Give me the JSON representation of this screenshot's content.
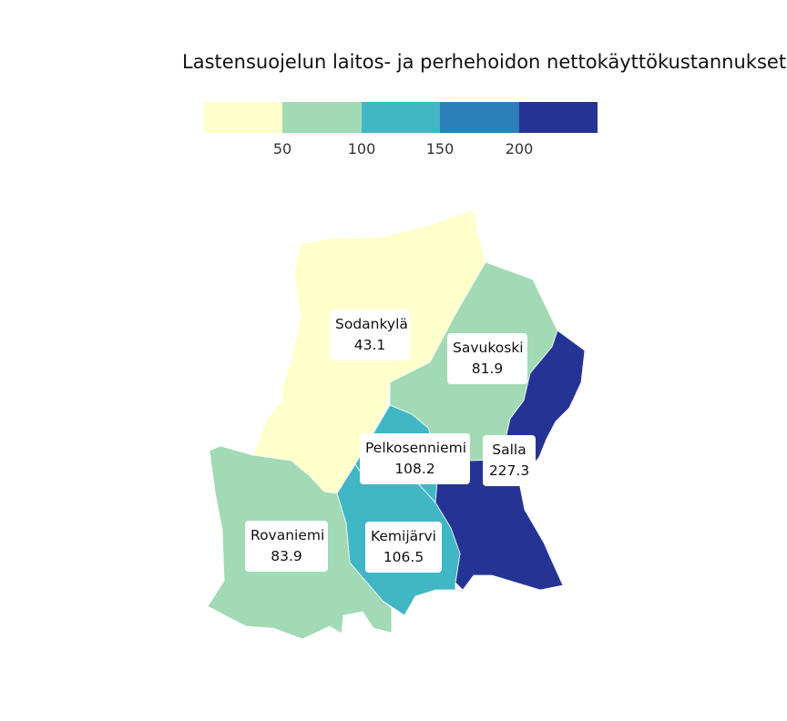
{
  "title": "Lastensuojelun laitos- ja perhehoidon nettokäyttökustannukset",
  "legend": {
    "colors": [
      "#ffffcc",
      "#a1dab4",
      "#41b6c4",
      "#2c7fb8",
      "#253494"
    ],
    "ticks": [
      "50",
      "100",
      "150",
      "200"
    ]
  },
  "regions": [
    {
      "name": "Sodankylä",
      "value": "43.1",
      "color": "#ffffcc"
    },
    {
      "name": "Savukoski",
      "value": "81.9",
      "color": "#a1dab4"
    },
    {
      "name": "Pelkosenniemi",
      "value": "108.2",
      "color": "#41b6c4"
    },
    {
      "name": "Salla",
      "value": "227.3",
      "color": "#253494"
    },
    {
      "name": "Rovaniemi",
      "value": "83.9",
      "color": "#a1dab4"
    },
    {
      "name": "Kemijärvi",
      "value": "106.5",
      "color": "#41b6c4"
    }
  ]
}
